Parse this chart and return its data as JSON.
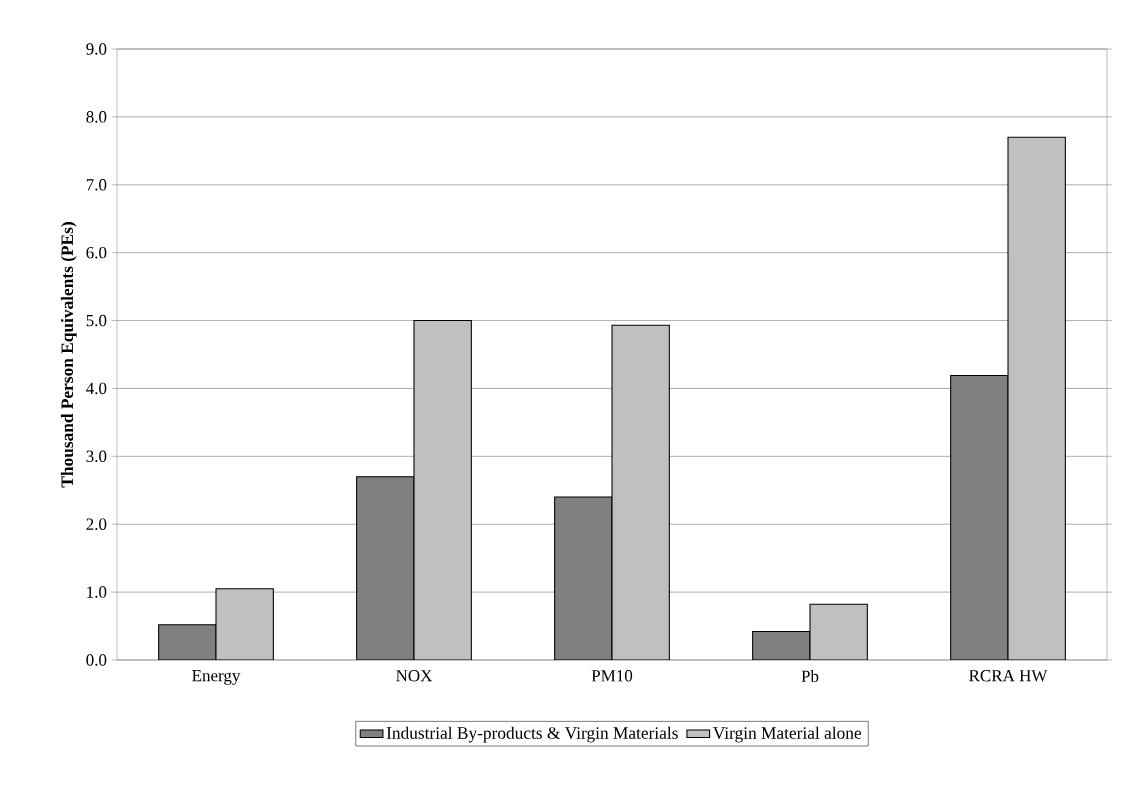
{
  "chart_data": {
    "type": "bar",
    "ylabel": "Thousand Person Equivalents (PEs)",
    "categories": [
      "Energy",
      "NOX",
      "PM10",
      "Pb",
      "RCRA HW"
    ],
    "series": [
      {
        "name": "Industrial By-products & Virgin Materials",
        "color": "#808080",
        "values": [
          0.52,
          2.7,
          2.4,
          0.42,
          4.19
        ]
      },
      {
        "name": "Virgin Material alone",
        "color": "#c0c0c0",
        "values": [
          1.05,
          5.0,
          4.93,
          0.82,
          7.7
        ]
      }
    ],
    "ylim": [
      0,
      9
    ],
    "yticks": [
      {
        "value": 0,
        "label": "0.0"
      },
      {
        "value": 1,
        "label": "1.0"
      },
      {
        "value": 2,
        "label": "2.0"
      },
      {
        "value": 3,
        "label": "3.0"
      },
      {
        "value": 4,
        "label": "4.0"
      },
      {
        "value": 5,
        "label": "5.0"
      },
      {
        "value": 6,
        "label": "6.0"
      },
      {
        "value": 7,
        "label": "7.0"
      },
      {
        "value": 8,
        "label": "8.0"
      },
      {
        "value": 9,
        "label": "9.0"
      }
    ],
    "grid": "y",
    "legend": "bottom"
  }
}
